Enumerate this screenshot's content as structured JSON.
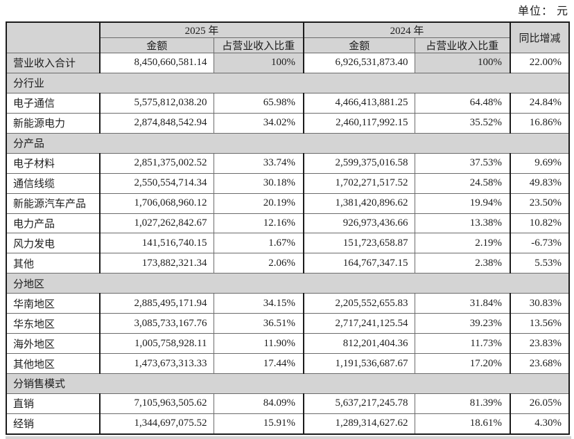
{
  "unit_label": "单位： 元",
  "table": {
    "header": {
      "year_2025": "2025 年",
      "year_2024": "2024 年",
      "amount_label": "金额",
      "ratio_label": "占营业收入比重",
      "yoy_label": "同比增减"
    },
    "rows": [
      {
        "type": "total",
        "label": "营业收入合计",
        "amt_2025": "8,450,660,581.14",
        "pct_2025": "100%",
        "amt_2024": "6,926,531,873.40",
        "pct_2024": "100%",
        "yoy": "22.00%"
      },
      {
        "type": "section",
        "label": "分行业"
      },
      {
        "type": "data",
        "label": "电子通信",
        "amt_2025": "5,575,812,038.20",
        "pct_2025": "65.98%",
        "amt_2024": "4,466,413,881.25",
        "pct_2024": "64.48%",
        "yoy": "24.84%"
      },
      {
        "type": "data",
        "label": "新能源电力",
        "amt_2025": "2,874,848,542.94",
        "pct_2025": "34.02%",
        "amt_2024": "2,460,117,992.15",
        "pct_2024": "35.52%",
        "yoy": "16.86%"
      },
      {
        "type": "section",
        "label": "分产品"
      },
      {
        "type": "data",
        "label": "电子材料",
        "amt_2025": "2,851,375,002.52",
        "pct_2025": "33.74%",
        "amt_2024": "2,599,375,016.58",
        "pct_2024": "37.53%",
        "yoy": "9.69%"
      },
      {
        "type": "data",
        "label": "通信线缆",
        "amt_2025": "2,550,554,714.34",
        "pct_2025": "30.18%",
        "amt_2024": "1,702,271,517.52",
        "pct_2024": "24.58%",
        "yoy": "49.83%"
      },
      {
        "type": "data",
        "label": "新能源汽车产品",
        "amt_2025": "1,706,068,960.12",
        "pct_2025": "20.19%",
        "amt_2024": "1,381,420,896.62",
        "pct_2024": "19.94%",
        "yoy": "23.50%"
      },
      {
        "type": "data",
        "label": "电力产品",
        "amt_2025": "1,027,262,842.67",
        "pct_2025": "12.16%",
        "amt_2024": "926,973,436.66",
        "pct_2024": "13.38%",
        "yoy": "10.82%"
      },
      {
        "type": "data",
        "label": "风力发电",
        "amt_2025": "141,516,740.15",
        "pct_2025": "1.67%",
        "amt_2024": "151,723,658.87",
        "pct_2024": "2.19%",
        "yoy": "-6.73%"
      },
      {
        "type": "data",
        "label": "其他",
        "amt_2025": "173,882,321.34",
        "pct_2025": "2.06%",
        "amt_2024": "164,767,347.15",
        "pct_2024": "2.38%",
        "yoy": "5.53%"
      },
      {
        "type": "section",
        "label": "分地区"
      },
      {
        "type": "data",
        "label": "华南地区",
        "amt_2025": "2,885,495,171.94",
        "pct_2025": "34.15%",
        "amt_2024": "2,205,552,655.83",
        "pct_2024": "31.84%",
        "yoy": "30.83%"
      },
      {
        "type": "data",
        "label": "华东地区",
        "amt_2025": "3,085,733,167.76",
        "pct_2025": "36.51%",
        "amt_2024": "2,717,241,125.54",
        "pct_2024": "39.23%",
        "yoy": "13.56%"
      },
      {
        "type": "data",
        "label": "海外地区",
        "amt_2025": "1,005,758,928.11",
        "pct_2025": "11.90%",
        "amt_2024": "812,201,404.36",
        "pct_2024": "11.73%",
        "yoy": "23.83%"
      },
      {
        "type": "data",
        "label": "其他地区",
        "amt_2025": "1,473,673,313.33",
        "pct_2025": "17.44%",
        "amt_2024": "1,191,536,687.67",
        "pct_2024": "17.20%",
        "yoy": "23.68%"
      },
      {
        "type": "section",
        "label": "分销售模式"
      },
      {
        "type": "data",
        "label": "直销",
        "amt_2025": "7,105,963,505.62",
        "pct_2025": "84.09%",
        "amt_2024": "5,637,217,245.78",
        "pct_2024": "81.39%",
        "yoy": "26.05%"
      },
      {
        "type": "data",
        "label": "经销",
        "amt_2025": "1,344,697,075.52",
        "pct_2025": "15.91%",
        "amt_2024": "1,289,314,627.62",
        "pct_2024": "18.61%",
        "yoy": "4.30%"
      }
    ]
  },
  "colors": {
    "header_bg": "#d4d4d4",
    "section_bg": "#d4d4d4",
    "body_bg": "#ffffff",
    "border_thick": "#1a1a1a",
    "border_thin": "#6a6a6a",
    "text": "#1c1c1c"
  }
}
